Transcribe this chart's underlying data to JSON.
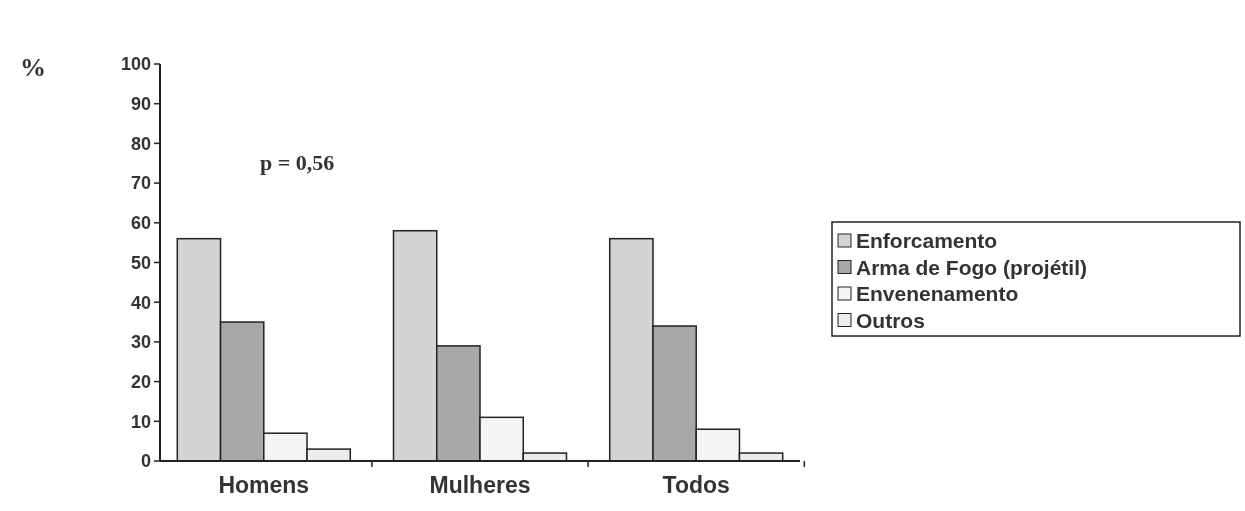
{
  "chart_data": {
    "type": "bar",
    "ylabel": "%",
    "categories": [
      "Homens",
      "Mulheres",
      "Todos"
    ],
    "series": [
      {
        "name": "Enforcamento",
        "color": "#d4d4d4",
        "values": [
          56,
          58,
          56
        ]
      },
      {
        "name": "Arma de Fogo (projétil)",
        "color": "#a8a8a8",
        "values": [
          35,
          29,
          34
        ]
      },
      {
        "name": "Envenenamento",
        "color": "#f4f4f4",
        "values": [
          7,
          11,
          8
        ]
      },
      {
        "name": "Outros",
        "color": "#ececec",
        "values": [
          3,
          2,
          2
        ]
      }
    ],
    "ylim": [
      0,
      100
    ],
    "yticks": [
      0,
      10,
      20,
      30,
      40,
      50,
      60,
      70,
      80,
      90,
      100
    ],
    "legend": "right",
    "grid": false,
    "annotations": [
      "p = 0,56"
    ]
  }
}
